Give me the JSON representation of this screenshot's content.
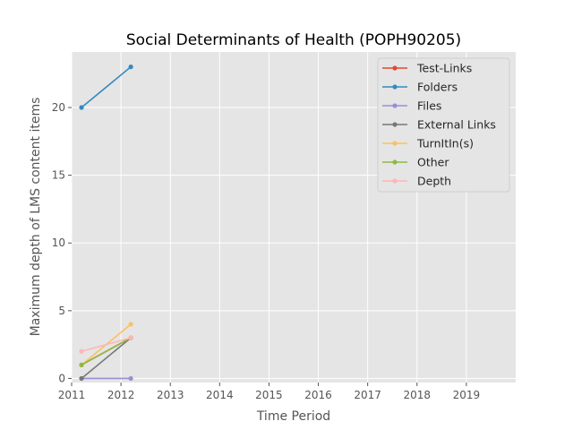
{
  "chart_data": {
    "type": "line",
    "title": "Social Determinants of Health (POPH90205)",
    "xlabel": "Time Period",
    "ylabel": "Maximum depth of LMS content items",
    "xlim": [
      2011,
      2020
    ],
    "ylim": [
      -0.3,
      24.1
    ],
    "xticks": [
      2011,
      2012,
      2013,
      2014,
      2015,
      2016,
      2017,
      2018,
      2019
    ],
    "yticks": [
      0,
      5,
      10,
      15,
      20
    ],
    "grid": true,
    "legend_position": "top-right",
    "series": [
      {
        "name": "Test-Links",
        "color": "#e24a33",
        "points": [
          [
            2011.2,
            1
          ],
          [
            2012.2,
            3
          ]
        ]
      },
      {
        "name": "Folders",
        "color": "#348abd",
        "points": [
          [
            2011.2,
            20
          ],
          [
            2012.2,
            23
          ]
        ]
      },
      {
        "name": "Files",
        "color": "#988ed5",
        "points": [
          [
            2011.2,
            0
          ],
          [
            2012.2,
            0
          ]
        ]
      },
      {
        "name": "External Links",
        "color": "#777777",
        "points": [
          [
            2011.2,
            0
          ],
          [
            2012.2,
            3
          ]
        ]
      },
      {
        "name": "TurnItIn(s)",
        "color": "#fbc15e",
        "points": [
          [
            2011.2,
            1
          ],
          [
            2012.2,
            4
          ]
        ]
      },
      {
        "name": "Other",
        "color": "#8eba42",
        "points": [
          [
            2011.2,
            1
          ],
          [
            2012.2,
            3
          ]
        ]
      },
      {
        "name": "Depth",
        "color": "#ffb5b8",
        "points": [
          [
            2011.2,
            2
          ],
          [
            2012.2,
            3
          ]
        ]
      }
    ]
  }
}
